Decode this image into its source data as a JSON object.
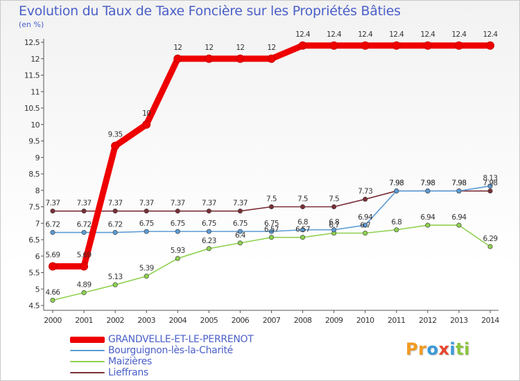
{
  "title": "Evolution du Taux de Taxe Foncière sur les Propriétés Bâties",
  "unit": "(en %)",
  "brand": {
    "letters": [
      {
        "ch": "P",
        "color": "#f39a1f"
      },
      {
        "ch": "r",
        "color": "#f39a1f"
      },
      {
        "ch": "o",
        "color": "#3a9ad9"
      },
      {
        "ch": "x",
        "color": "#e8452c"
      },
      {
        "ch": "i",
        "color": "#3a9ad9"
      },
      {
        "ch": "t",
        "color": "#8cc63f"
      },
      {
        "ch": "i",
        "color": "#8cc63f"
      }
    ]
  },
  "chart_data": {
    "type": "line",
    "title": "Evolution du Taux de Taxe Foncière sur les Propriétés Bâties",
    "ylabel": "(en %)",
    "xlabel": "",
    "x": [
      "2000",
      "2001",
      "2002",
      "2003",
      "2004",
      "2005",
      "2006",
      "2007",
      "2008",
      "2009",
      "2010",
      "2011",
      "2012",
      "2013",
      "2014"
    ],
    "ylim": [
      4.5,
      12.5
    ],
    "yticks": [
      "4.5",
      "5",
      "5.5",
      "6",
      "6.5",
      "7",
      "7.5",
      "8",
      "8.5",
      "9",
      "9.5",
      "10",
      "10.5",
      "11",
      "11.5",
      "12",
      "12.5"
    ],
    "grid": false,
    "legend_position": "bottom-left",
    "series": [
      {
        "name": "GRANDVELLE-ET-LE-PERRENOT",
        "color": "#ee0000",
        "values": [
          5.69,
          5.69,
          9.35,
          10,
          12,
          12,
          12,
          12,
          12.4,
          12.4,
          12.4,
          12.4,
          12.4,
          12.4,
          12.4
        ],
        "labels": [
          "5.69",
          "5.69",
          "9.35",
          "10",
          "12",
          "12",
          "12",
          "12",
          "12.4",
          "12.4",
          "12.4",
          "12.4",
          "12.4",
          "12.4",
          "12.4"
        ]
      },
      {
        "name": "Bourguignon-lès-la-Charité",
        "color": "#5b9bd5",
        "values": [
          6.72,
          6.72,
          6.72,
          6.75,
          6.75,
          6.75,
          6.75,
          6.75,
          6.8,
          6.8,
          6.94,
          7.98,
          7.98,
          7.98,
          8.13
        ],
        "labels": [
          "6.72",
          "6.72",
          "6.72",
          "6.75",
          "6.75",
          "6.75",
          "6.75",
          "6.75",
          "6.8",
          "6.8",
          "6.94",
          "7.98",
          "7.98",
          "7.98",
          "8.13"
        ]
      },
      {
        "name": "Maizières",
        "color": "#8fd14f",
        "values": [
          4.66,
          4.89,
          5.13,
          5.39,
          5.93,
          6.23,
          6.4,
          6.57,
          6.57,
          6.7,
          6.7,
          6.8,
          6.94,
          6.94,
          6.29
        ],
        "labels": [
          "4.66",
          "4.89",
          "5.13",
          "5.39",
          "5.93",
          "6.23",
          "6.4",
          "6.57",
          "6.57",
          "6.7",
          "6.7",
          "6.8",
          "6.94",
          "6.94",
          "6.29"
        ]
      },
      {
        "name": "Lieffrans",
        "color": "#7a2e36",
        "values": [
          7.37,
          7.37,
          7.37,
          7.37,
          7.37,
          7.37,
          7.37,
          7.5,
          7.5,
          7.5,
          7.73,
          7.98,
          7.98,
          7.98,
          7.98
        ],
        "labels": [
          "7.37",
          "7.37",
          "7.37",
          "7.37",
          "7.37",
          "7.37",
          "7.37",
          "7.5",
          "7.5",
          "7.5",
          "7.73",
          "7.98",
          "7.98",
          "7.98",
          "7.98"
        ]
      }
    ]
  }
}
